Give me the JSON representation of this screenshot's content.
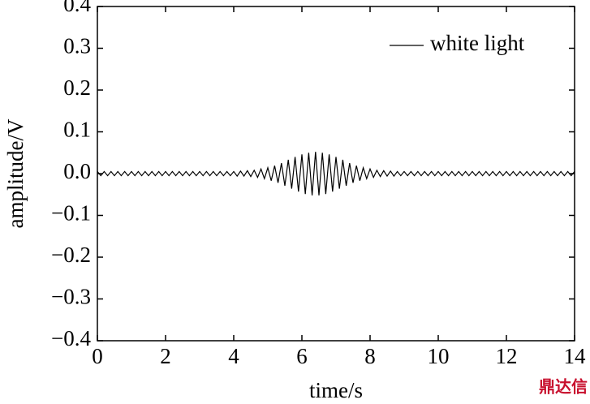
{
  "chart_data": {
    "type": "line",
    "xlabel": "time/s",
    "ylabel": "amplitude/V",
    "watermark": "鼎达信",
    "legend": "upper right",
    "x": [
      0,
      0.1,
      0.2,
      0.3,
      0.4,
      0.5,
      0.6,
      0.7,
      0.8,
      0.9,
      1,
      1.1,
      1.2,
      1.3,
      1.4,
      1.5,
      1.6,
      1.7,
      1.8,
      1.9,
      2,
      2.1,
      2.2,
      2.3,
      2.4,
      2.5,
      2.6,
      2.7,
      2.8,
      2.9,
      3,
      3.1,
      3.2,
      3.3,
      3.4,
      3.5,
      3.6,
      3.7,
      3.8,
      3.9,
      4,
      4.1,
      4.2,
      4.3,
      4.4,
      4.5,
      4.6,
      4.7,
      4.8,
      4.9,
      5,
      5.1,
      5.2,
      5.3,
      5.4,
      5.5,
      5.6,
      5.7,
      5.8,
      5.9,
      6,
      6.1,
      6.2,
      6.3,
      6.4,
      6.5,
      6.6,
      6.7,
      6.8,
      6.9,
      7,
      7.1,
      7.2,
      7.3,
      7.4,
      7.5,
      7.6,
      7.7,
      7.8,
      7.9,
      8,
      8.1,
      8.2,
      8.3,
      8.4,
      8.5,
      8.6,
      8.7,
      8.8,
      8.9,
      9,
      9.1,
      9.2,
      9.3,
      9.4,
      9.5,
      9.6,
      9.7,
      9.8,
      9.9,
      10,
      10.1,
      10.2,
      10.3,
      10.4,
      10.5,
      10.6,
      10.7,
      10.8,
      10.9,
      11,
      11.1,
      11.2,
      11.3,
      11.4,
      11.5,
      11.6,
      11.7,
      11.8,
      11.9,
      12,
      12.1,
      12.2,
      12.3,
      12.4,
      12.5,
      12.6,
      12.7,
      12.8,
      12.9,
      13,
      13.1,
      13.2,
      13.3,
      13.4,
      13.5,
      13.6,
      13.7,
      13.8,
      13.9,
      14
    ],
    "series": [
      {
        "name": "white light",
        "color": "#000000",
        "values": [
          0.005,
          -0.005,
          0.005,
          -0.005,
          0.005,
          -0.005,
          0.005,
          -0.005,
          0.005,
          -0.005,
          0.005,
          -0.005,
          0.005,
          -0.005,
          0.005,
          -0.005,
          0.005,
          -0.005,
          0.005,
          -0.005,
          0.005,
          -0.005,
          0.005,
          -0.005,
          0.005,
          -0.005,
          0.005,
          -0.005,
          0.005,
          -0.005,
          0.005,
          -0.005,
          0.005,
          -0.005,
          0.005,
          -0.005,
          0.005,
          -0.005,
          0.005,
          -0.005,
          0.005,
          -0.006,
          0.006,
          -0.006,
          0.007,
          -0.007,
          0.008,
          -0.009,
          0.011,
          -0.012,
          0.014,
          -0.017,
          0.019,
          -0.022,
          0.025,
          -0.029,
          0.033,
          -0.036,
          0.04,
          -0.043,
          0.046,
          -0.049,
          0.05,
          -0.052,
          0.052,
          -0.052,
          0.05,
          -0.049,
          0.046,
          -0.043,
          0.04,
          -0.036,
          0.033,
          -0.029,
          0.025,
          -0.022,
          0.019,
          -0.017,
          0.014,
          -0.012,
          0.011,
          -0.009,
          0.008,
          -0.007,
          0.007,
          -0.006,
          0.006,
          -0.006,
          0.005,
          -0.005,
          0.005,
          -0.005,
          0.005,
          -0.005,
          0.005,
          -0.005,
          0.005,
          -0.005,
          0.005,
          -0.005,
          0.005,
          -0.005,
          0.005,
          -0.005,
          0.005,
          -0.005,
          0.005,
          -0.005,
          0.005,
          -0.005,
          0.005,
          -0.005,
          0.005,
          -0.005,
          0.005,
          -0.005,
          0.005,
          -0.005,
          0.005,
          -0.005,
          0.005,
          -0.005,
          0.005,
          -0.005,
          0.005,
          -0.005,
          0.005,
          -0.005,
          0.005,
          -0.005,
          0.005,
          -0.005,
          0.005,
          -0.005,
          0.005,
          -0.005,
          0.005,
          -0.005,
          0.005,
          -0.005,
          0.005
        ]
      }
    ],
    "xlim": [
      0,
      14
    ],
    "xticks": [
      0,
      2,
      4,
      6,
      8,
      10,
      12,
      14
    ],
    "ylim": [
      -0.4,
      0.4
    ],
    "yticks": [
      {
        "value": -0.4,
        "label": "−0.4"
      },
      {
        "value": -0.3,
        "label": "−0.3"
      },
      {
        "value": -0.2,
        "label": "−0.2"
      },
      {
        "value": -0.1,
        "label": "−0.1"
      },
      {
        "value": 0,
        "label": "0.0"
      },
      0.1,
      0.2,
      0.3,
      0.4
    ]
  }
}
